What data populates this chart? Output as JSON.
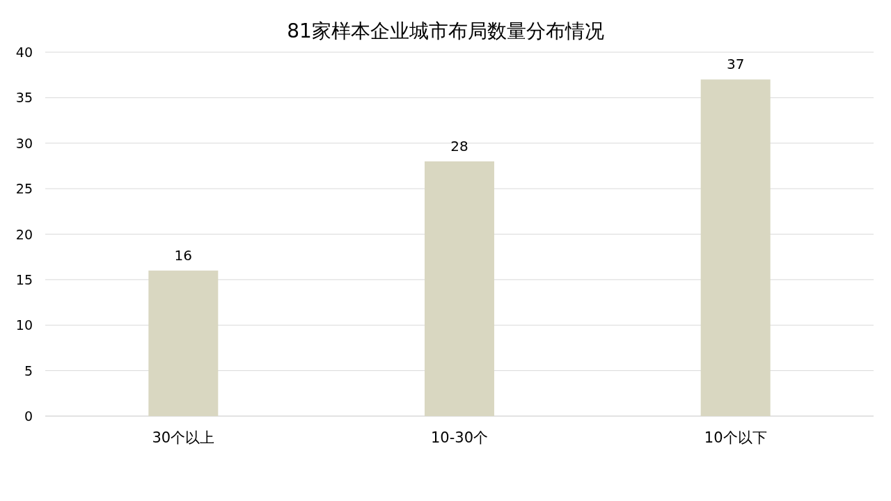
{
  "chart_data": {
    "type": "bar",
    "title": "81家样本企业城市布局数量分布情况",
    "categories": [
      "30个以上",
      "10-30个",
      "10个以下"
    ],
    "series": [
      {
        "color": "#d9d7c1",
        "values": [
          16,
          28,
          37
        ]
      }
    ],
    "ylim": [
      0,
      40
    ],
    "yticks": [
      0,
      5,
      10,
      15,
      20,
      25,
      30,
      35,
      40
    ],
    "grid": "y",
    "data_labels": true
  }
}
